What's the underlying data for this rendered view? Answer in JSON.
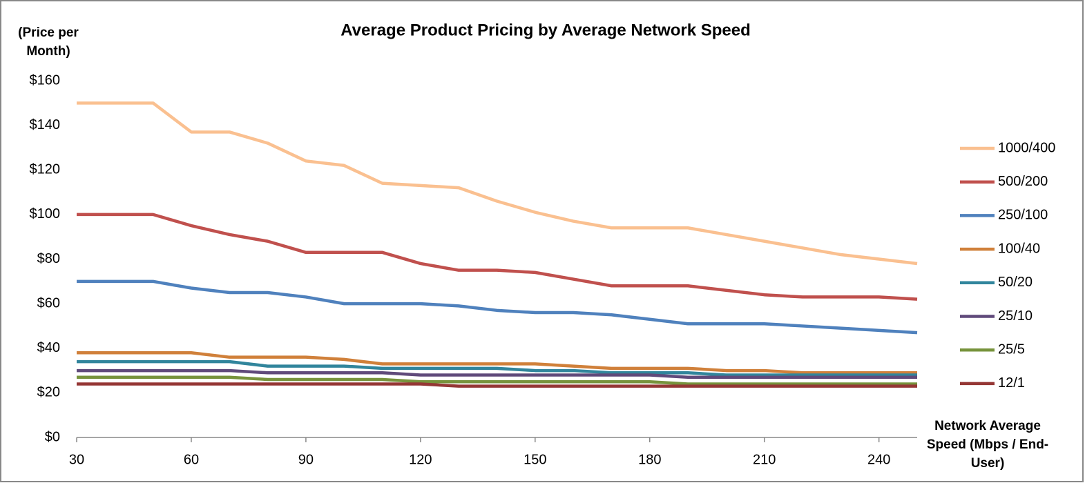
{
  "chart_data": {
    "type": "line",
    "title": "Average Product Pricing by Average Network Speed",
    "ylabel": "(Price per Month)",
    "xlabel": "Network Average Speed (Mbps / End-User)",
    "x": [
      30,
      40,
      50,
      60,
      70,
      80,
      90,
      100,
      110,
      120,
      130,
      140,
      150,
      160,
      170,
      180,
      190,
      200,
      210,
      220,
      230,
      240,
      250
    ],
    "xlim": [
      30,
      250
    ],
    "xticks": [
      30,
      60,
      90,
      120,
      150,
      180,
      210,
      240
    ],
    "ylim": [
      0,
      160
    ],
    "yticks": [
      {
        "value": 0,
        "label": "$0"
      },
      {
        "value": 20,
        "label": "$20"
      },
      {
        "value": 40,
        "label": "$40"
      },
      {
        "value": 60,
        "label": "$60"
      },
      {
        "value": 80,
        "label": "$80"
      },
      {
        "value": 100,
        "label": "$100"
      },
      {
        "value": 120,
        "label": "$120"
      },
      {
        "value": 140,
        "label": "$140"
      },
      {
        "value": 160,
        "label": "$160"
      }
    ],
    "grid": false,
    "legend": "right",
    "series": [
      {
        "name": "1000/400",
        "color": "#fac090",
        "values": [
          150,
          150,
          150,
          137,
          137,
          132,
          124,
          122,
          114,
          113,
          112,
          106,
          101,
          97,
          94,
          94,
          94,
          91,
          88,
          85,
          82,
          80,
          78
        ]
      },
      {
        "name": "500/200",
        "color": "#c0504d",
        "values": [
          100,
          100,
          100,
          95,
          91,
          88,
          83,
          83,
          83,
          78,
          75,
          75,
          74,
          71,
          68,
          68,
          68,
          66,
          64,
          63,
          63,
          63,
          62
        ]
      },
      {
        "name": "250/100",
        "color": "#4f81bd",
        "values": [
          70,
          70,
          70,
          67,
          65,
          65,
          63,
          60,
          60,
          60,
          59,
          57,
          56,
          56,
          55,
          53,
          51,
          51,
          51,
          50,
          49,
          48,
          47
        ]
      },
      {
        "name": "100/40",
        "color": "#d0803a",
        "values": [
          38,
          38,
          38,
          38,
          36,
          36,
          36,
          35,
          33,
          33,
          33,
          33,
          33,
          32,
          31,
          31,
          31,
          30,
          30,
          29,
          29,
          29,
          29
        ]
      },
      {
        "name": "50/20",
        "color": "#31859c",
        "values": [
          34,
          34,
          34,
          34,
          34,
          32,
          32,
          32,
          31,
          31,
          31,
          31,
          30,
          30,
          29,
          29,
          29,
          28,
          28,
          28,
          28,
          28,
          28
        ]
      },
      {
        "name": "25/10",
        "color": "#604a7b",
        "values": [
          30,
          30,
          30,
          30,
          30,
          29,
          29,
          29,
          29,
          28,
          28,
          28,
          28,
          28,
          28,
          28,
          27,
          27,
          27,
          27,
          27,
          27,
          27
        ]
      },
      {
        "name": "25/5",
        "color": "#77933c",
        "values": [
          27,
          27,
          27,
          27,
          27,
          26,
          26,
          26,
          26,
          25,
          25,
          25,
          25,
          25,
          25,
          25,
          24,
          24,
          24,
          24,
          24,
          24,
          24
        ]
      },
      {
        "name": "12/1",
        "color": "#953735",
        "values": [
          24,
          24,
          24,
          24,
          24,
          24,
          24,
          24,
          24,
          24,
          23,
          23,
          23,
          23,
          23,
          23,
          23,
          23,
          23,
          23,
          23,
          23,
          23
        ]
      }
    ]
  }
}
